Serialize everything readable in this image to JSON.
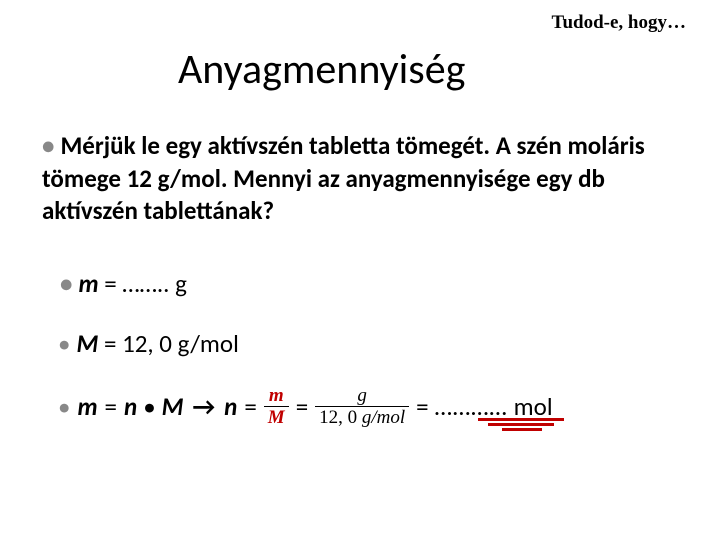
{
  "header": {
    "right": "Tudod-e, hogy…"
  },
  "title": "Anyagmennyiség",
  "question": {
    "text": "Mérjük le egy aktívszén tabletta tömegét. A szén moláris tömege 12 g/mol. Mennyi az anyagmennyisége egy db aktívszén tablettának?"
  },
  "given": {
    "m_label": "m",
    "m_eq": " = …….. g",
    "M_label": "M",
    "M_eq": " = 12, 0 g/mol"
  },
  "formula": {
    "lhs_m": "m",
    "eq1": "=",
    "n": "n",
    "dot": "•",
    "bigM": "M",
    "arrow": "→",
    "eq2": "=",
    "frac1_num": "m",
    "frac1_den": "M",
    "eq3": "=",
    "frac2_num": "g",
    "frac2_den_val": "12, 0 ",
    "frac2_den_unit": "g/mol",
    "eq4": "=",
    "dots": "…………",
    "unit": "mol"
  },
  "style": {
    "accent_color": "#c00000",
    "background": "#ffffff",
    "title_fontsize": 42,
    "body_fontsize": 25,
    "frac_fontsize": 19
  }
}
